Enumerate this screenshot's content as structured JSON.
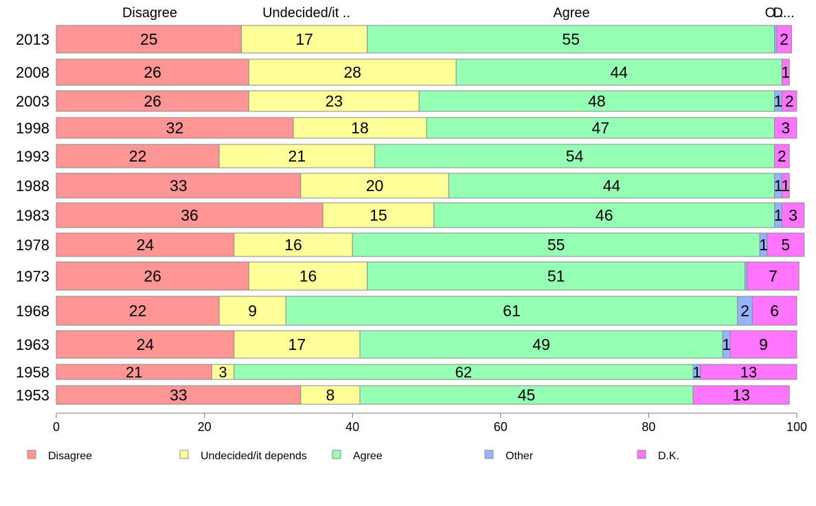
{
  "chart_data": {
    "type": "bar",
    "orientation": "horizontal",
    "stacked": true,
    "categories": [
      "2013",
      "2008",
      "2003",
      "1998",
      "1993",
      "1988",
      "1983",
      "1978",
      "1973",
      "1968",
      "1963",
      "1958",
      "1953"
    ],
    "series": [
      {
        "name": "Disagree",
        "color": "#ff9595",
        "values": [
          25,
          26,
          26,
          32,
          22,
          33,
          36,
          24,
          26,
          22,
          24,
          21,
          33
        ]
      },
      {
        "name": "Undecided/it depends",
        "color": "#ffff9a",
        "values": [
          17,
          28,
          23,
          18,
          21,
          20,
          15,
          16,
          16,
          9,
          17,
          3,
          8
        ]
      },
      {
        "name": "Agree",
        "color": "#95ffb4",
        "values": [
          55,
          44,
          48,
          47,
          54,
          44,
          46,
          55,
          51,
          61,
          49,
          62,
          45
        ]
      },
      {
        "name": "Other",
        "color": "#95b4ff",
        "values": [
          0.3,
          0,
          1,
          0,
          0,
          1,
          1,
          1,
          0.3,
          2,
          1,
          1,
          0
        ]
      },
      {
        "name": "D.K.",
        "color": "#ff75ff",
        "values": [
          2,
          1,
          2,
          3,
          2,
          1,
          3,
          5,
          7,
          6,
          9,
          13,
          13
        ]
      }
    ],
    "data_labels": [
      [
        "25",
        "17",
        "55",
        "",
        "2"
      ],
      [
        "26",
        "28",
        "44",
        "",
        "1"
      ],
      [
        "26",
        "23",
        "48",
        "1",
        "2"
      ],
      [
        "32",
        "18",
        "47",
        "",
        "3"
      ],
      [
        "22",
        "21",
        "54",
        "",
        "2"
      ],
      [
        "33",
        "20",
        "44",
        "1",
        "1"
      ],
      [
        "36",
        "15",
        "46",
        "1",
        "3"
      ],
      [
        "24",
        "16",
        "55",
        "1",
        "5"
      ],
      [
        "26",
        "16",
        "51",
        "",
        "7"
      ],
      [
        "22",
        "9",
        "61",
        "2",
        "6"
      ],
      [
        "24",
        "17",
        "49",
        "1",
        "9"
      ],
      [
        "21",
        "3",
        "62",
        "1",
        "13"
      ],
      [
        "33",
        "8",
        "45",
        "",
        "13"
      ]
    ],
    "top_labels": [
      "Disagree",
      "Undecided/it ..",
      "Agree",
      "O..",
      "D..."
    ],
    "xlim": [
      0,
      100
    ],
    "xticks": [
      0,
      20,
      40,
      60,
      80,
      100
    ],
    "grid": false,
    "legend_position": "bottom",
    "legend": [
      "Disagree",
      "Undecided/it depends",
      "Agree",
      "Other",
      "D.K."
    ]
  }
}
